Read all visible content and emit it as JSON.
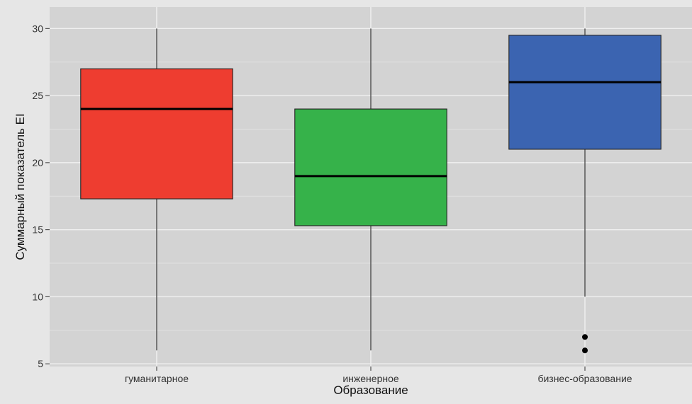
{
  "chart_data": {
    "type": "boxplot",
    "title": "",
    "xlabel": "Образование",
    "ylabel": "Суммарный показатель EI",
    "ylim": [
      5,
      30
    ],
    "yticks": [
      5,
      10,
      15,
      20,
      25,
      30
    ],
    "grid": true,
    "legend": "none",
    "categories": [
      "гуманитарное",
      "инженерное",
      "бизнес-образование"
    ],
    "boxes": [
      {
        "category": "гуманитарное",
        "whisker_low": 6,
        "q1": 17.3,
        "median": 24,
        "q3": 27,
        "whisker_high": 30,
        "outliers": [],
        "color": "#ee3d30"
      },
      {
        "category": "инженерное",
        "whisker_low": 6,
        "q1": 15.3,
        "median": 19,
        "q3": 24,
        "whisker_high": 30,
        "outliers": [],
        "color": "#36b24a"
      },
      {
        "category": "бизнес-образование",
        "whisker_low": 10,
        "q1": 21,
        "median": 26,
        "q3": 29.5,
        "whisker_high": 30,
        "outliers": [
          7,
          6
        ],
        "color": "#3b64b1"
      }
    ]
  }
}
